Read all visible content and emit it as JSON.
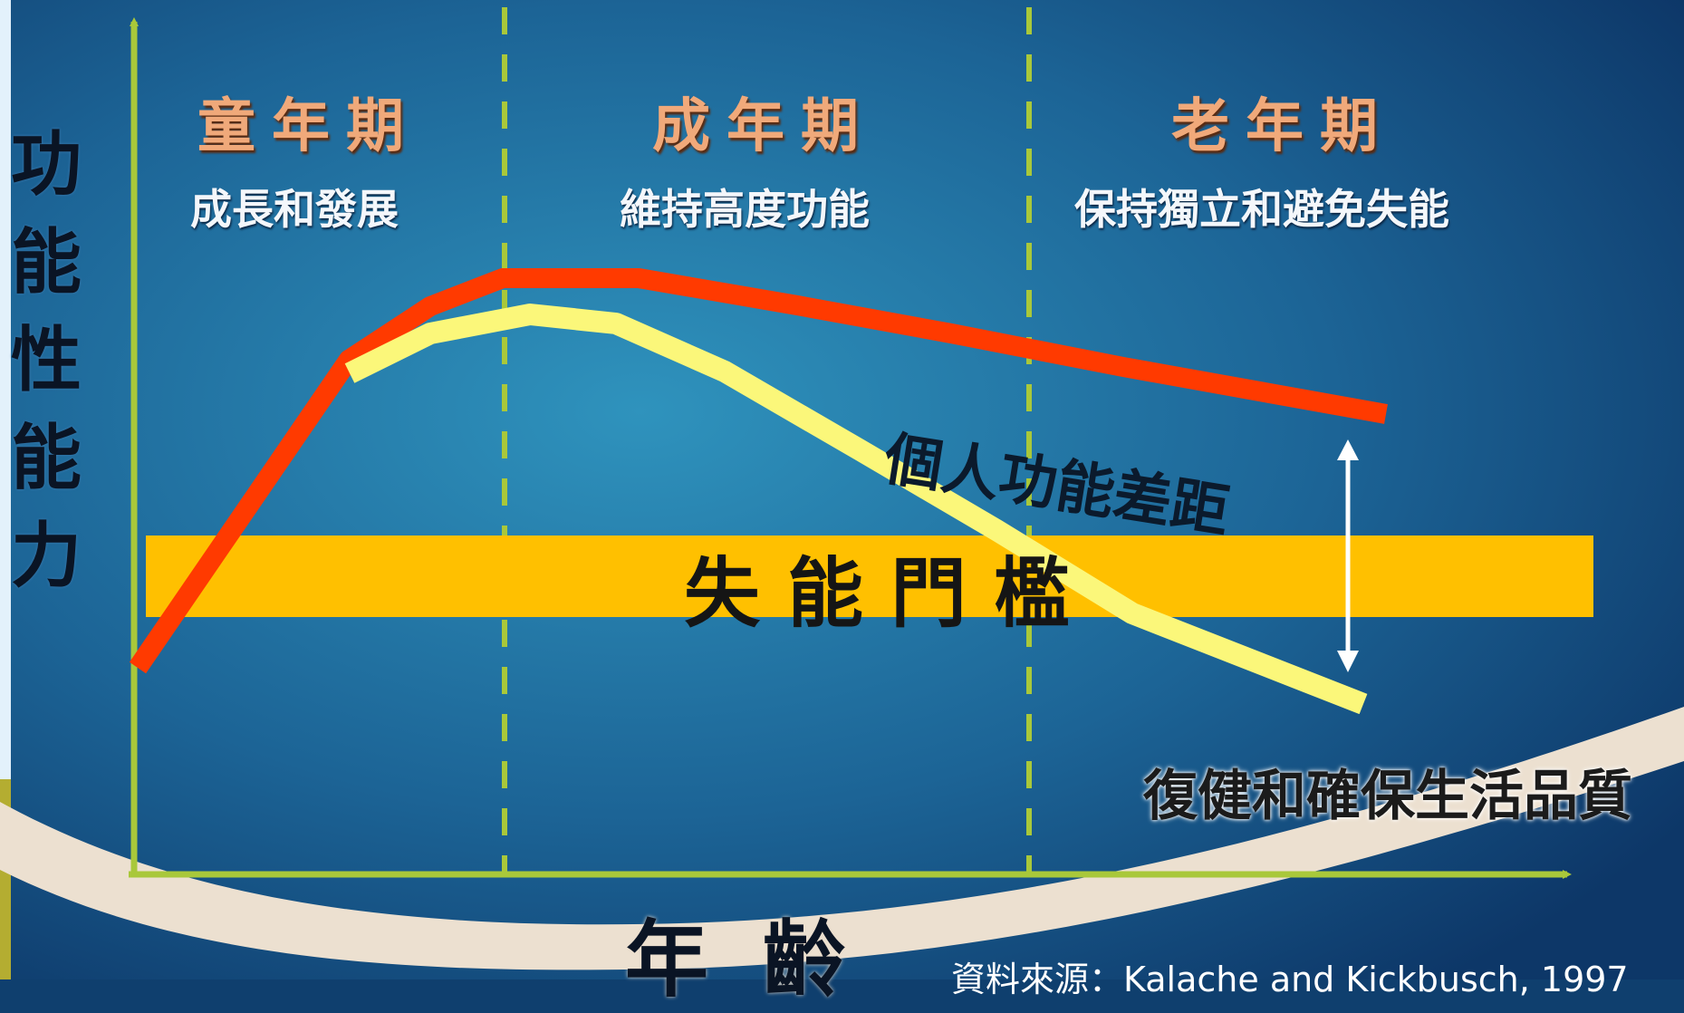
{
  "colors": {
    "background_light": "#2d8cb6",
    "background_dark": "#0f3f6e",
    "left_stripe": "#e3f1fb",
    "left_stripe_accent": "#b4ad31",
    "axis": "#a9c83a",
    "divider": "#a9c83a",
    "red_curve": "#ff3a00",
    "yellow_curve": "#fbf77a",
    "threshold_band": "#ffc000",
    "rehab_band": "#ece0d0",
    "phase_title": "#f0a97a",
    "arrow": "#ffffff"
  },
  "y_axis": {
    "label": "功能性能力"
  },
  "x_axis": {
    "label": "年齡"
  },
  "phases": [
    {
      "title": "童年期",
      "description": "成長和發展"
    },
    {
      "title": "成年期",
      "description": "維持高度功能"
    },
    {
      "title": "老年期",
      "description": "保持獨立和避免失能"
    }
  ],
  "threshold": {
    "label": "失能門檻"
  },
  "gap": {
    "label": "個人功能差距"
  },
  "rehab": {
    "label": "復健和確保生活品質"
  },
  "source": {
    "label": "資料來源：Kalache and Kickbusch, 1997"
  },
  "icons": [
    "up-down-arrow-icon"
  ]
}
